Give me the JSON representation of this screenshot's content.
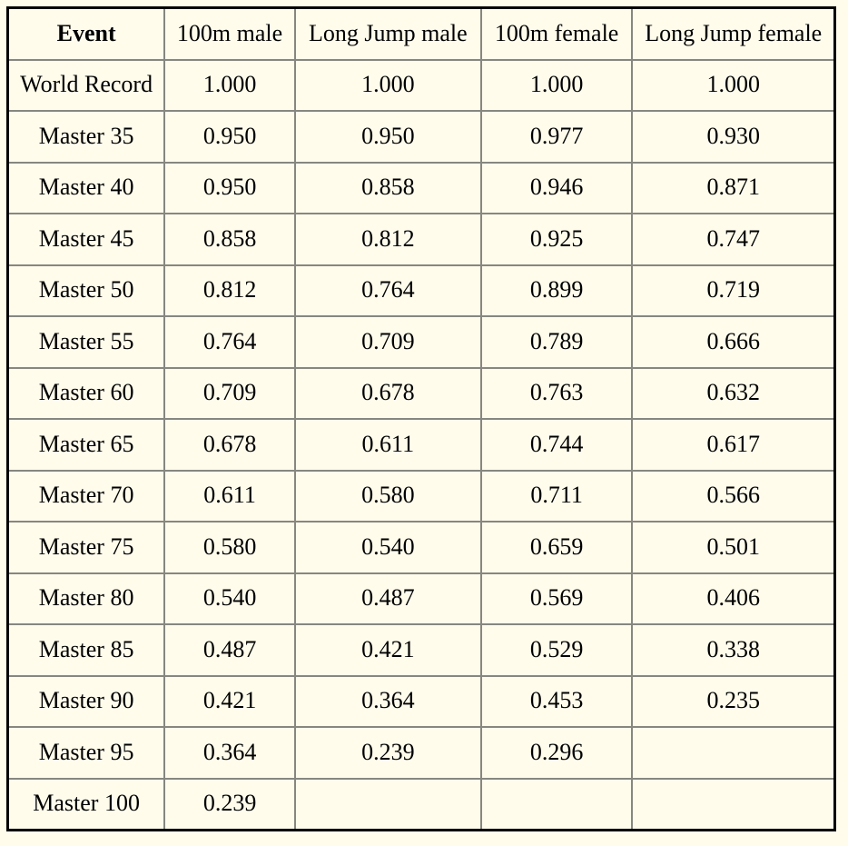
{
  "colors": {
    "page_background": "#FFFCEC",
    "outer_border": "#000000",
    "inner_border": "#878780",
    "text": "#000000"
  },
  "table": {
    "columns": [
      "Event",
      "100m male",
      "Long Jump male",
      "100m female",
      "Long Jump female"
    ],
    "rows": [
      {
        "event": "World Record",
        "values": [
          "1.000",
          "1.000",
          "1.000",
          "1.000"
        ]
      },
      {
        "event": "Master 35",
        "values": [
          "0.950",
          "0.950",
          "0.977",
          "0.930"
        ]
      },
      {
        "event": "Master 40",
        "values": [
          "0.950",
          "0.858",
          "0.946",
          "0.871"
        ]
      },
      {
        "event": "Master 45",
        "values": [
          "0.858",
          "0.812",
          "0.925",
          "0.747"
        ]
      },
      {
        "event": "Master 50",
        "values": [
          "0.812",
          "0.764",
          "0.899",
          "0.719"
        ]
      },
      {
        "event": "Master 55",
        "values": [
          "0.764",
          "0.709",
          "0.789",
          "0.666"
        ]
      },
      {
        "event": "Master 60",
        "values": [
          "0.709",
          "0.678",
          "0.763",
          "0.632"
        ]
      },
      {
        "event": "Master 65",
        "values": [
          "0.678",
          "0.611",
          "0.744",
          "0.617"
        ]
      },
      {
        "event": "Master 70",
        "values": [
          "0.611",
          "0.580",
          "0.711",
          "0.566"
        ]
      },
      {
        "event": "Master 75",
        "values": [
          "0.580",
          "0.540",
          "0.659",
          "0.501"
        ]
      },
      {
        "event": "Master 80",
        "values": [
          "0.540",
          "0.487",
          "0.569",
          "0.406"
        ]
      },
      {
        "event": "Master 85",
        "values": [
          "0.487",
          "0.421",
          "0.529",
          "0.338"
        ]
      },
      {
        "event": "Master 90",
        "values": [
          "0.421",
          "0.364",
          "0.453",
          "0.235"
        ]
      },
      {
        "event": "Master 95",
        "values": [
          "0.364",
          "0.239",
          "0.296",
          ""
        ]
      },
      {
        "event": "Master 100",
        "values": [
          "0.239",
          "",
          "",
          ""
        ]
      }
    ]
  }
}
